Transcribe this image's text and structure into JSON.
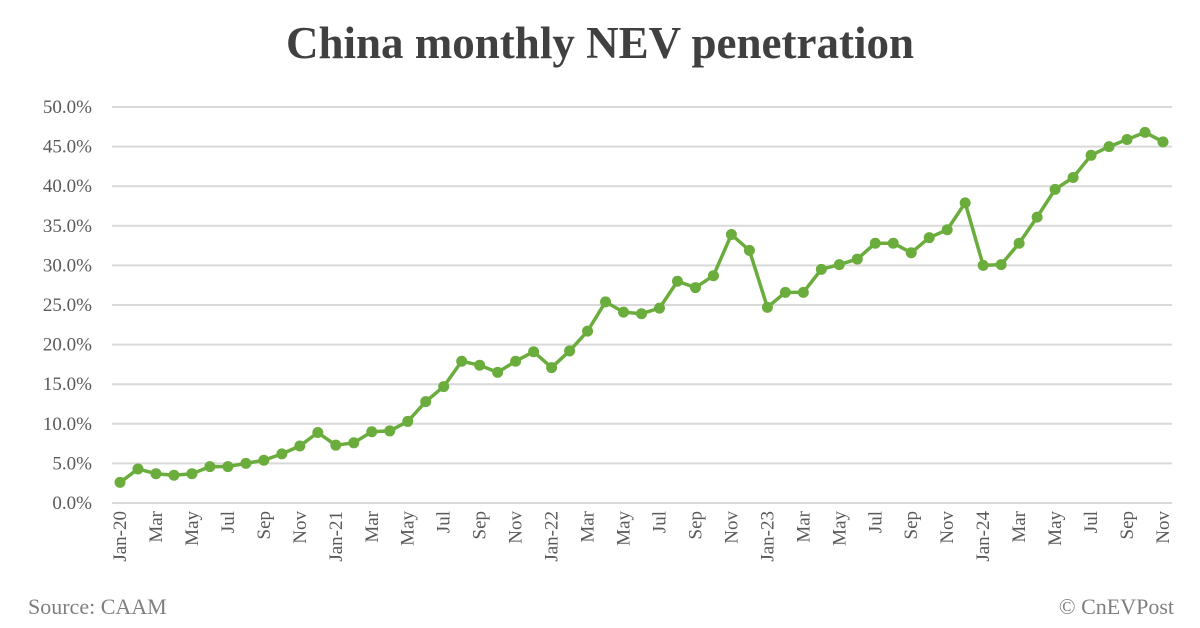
{
  "chart_data": {
    "type": "line",
    "title": "China monthly NEV penetration",
    "x_tick_labels": [
      "Jan-20",
      "Mar",
      "May",
      "Jul",
      "Sep",
      "Nov",
      "Jan-21",
      "Mar",
      "May",
      "Jul",
      "Sep",
      "Nov",
      "Jan-22",
      "Mar",
      "May",
      "Jul",
      "Sep",
      "Nov",
      "Jan-23",
      "Mar",
      "May",
      "Jul",
      "Sep",
      "Nov",
      "Jan-24",
      "Mar",
      "May",
      "Jul",
      "Sep",
      "Nov"
    ],
    "x_range": [
      "Jan-20",
      "Nov-24"
    ],
    "y_tick_labels": [
      "0.0%",
      "5.0%",
      "10.0%",
      "15.0%",
      "20.0%",
      "25.0%",
      "30.0%",
      "35.0%",
      "40.0%",
      "45.0%",
      "50.0%"
    ],
    "ylim": [
      0,
      50
    ],
    "y_unit": "%",
    "grid": "horizontal",
    "series": [
      {
        "color": "#6AAD3D",
        "values": [
          2.6,
          4.3,
          3.7,
          3.5,
          3.7,
          4.6,
          4.6,
          5.0,
          5.4,
          6.2,
          7.2,
          8.9,
          7.3,
          7.6,
          9.0,
          9.1,
          10.3,
          12.8,
          14.7,
          17.9,
          17.4,
          16.5,
          17.9,
          19.1,
          17.1,
          19.2,
          21.7,
          25.4,
          24.1,
          23.9,
          24.6,
          28.0,
          27.2,
          28.7,
          33.9,
          31.9,
          24.7,
          26.6,
          26.6,
          29.5,
          30.1,
          30.8,
          32.8,
          32.8,
          31.6,
          33.5,
          34.5,
          37.9,
          30.0,
          30.1,
          32.8,
          36.1,
          39.6,
          41.1,
          43.9,
          45.0,
          45.9,
          46.8,
          45.6
        ]
      }
    ]
  },
  "footer": {
    "source": "Source: CAAM",
    "credit": "© CnEVPost"
  }
}
